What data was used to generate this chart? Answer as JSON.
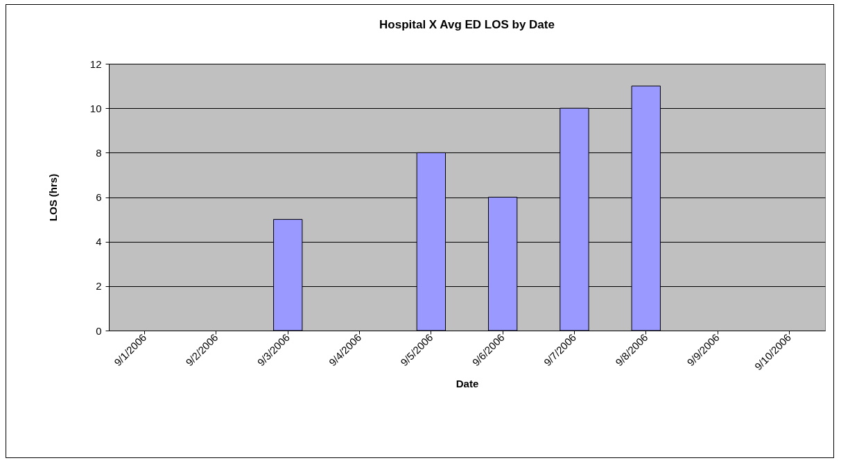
{
  "chart_data": {
    "type": "bar",
    "title": "Hospital X Avg ED LOS by Date",
    "xlabel": "Date",
    "ylabel": "LOS (hrs)",
    "categories": [
      "9/1/2006",
      "9/2/2006",
      "9/3/2006",
      "9/4/2006",
      "9/5/2006",
      "9/6/2006",
      "9/7/2006",
      "9/8/2006",
      "9/9/2006",
      "9/10/2006"
    ],
    "values": [
      null,
      null,
      5,
      null,
      8,
      6,
      10,
      11,
      null,
      null
    ],
    "color": "#9999ff",
    "ylim": [
      0,
      12
    ],
    "yticks": [
      0,
      2,
      4,
      6,
      8,
      10,
      12
    ],
    "grid": "y"
  }
}
